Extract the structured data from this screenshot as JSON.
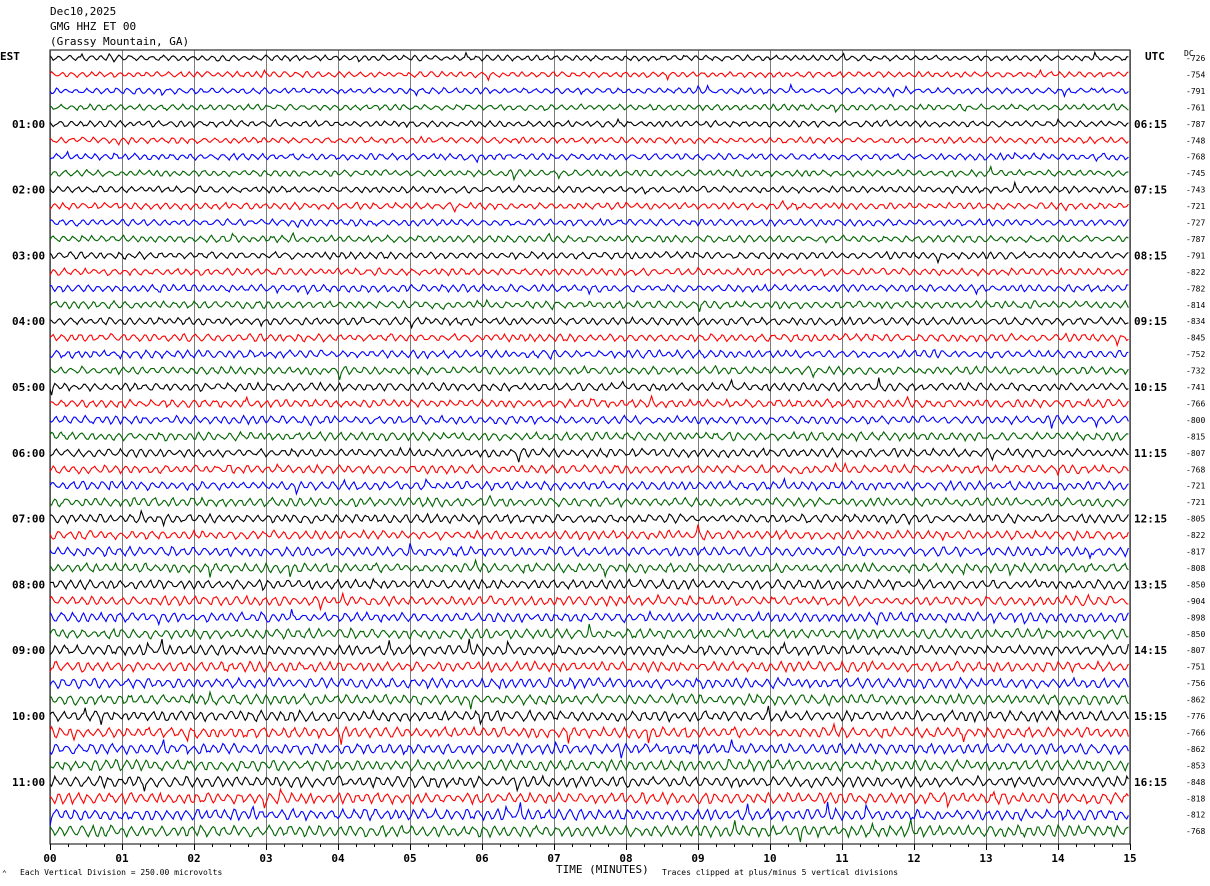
{
  "header": {
    "date": "Dec10,2025",
    "station": "GMG HHZ ET 00",
    "location": "(Grassy Mountain, GA)"
  },
  "left_zone_label": "EST",
  "right_zone_label": "UTC",
  "dc_label": "DC",
  "footer": {
    "scale_note": "Each Vertical Division =  250.00 microvolts",
    "xlabel": "TIME (MINUTES)",
    "clip_note": "Traces clipped at plus/minus 5 vertical divisions"
  },
  "colors": {
    "trace_cycle": [
      "#000000",
      "#ff0000",
      "#0000ff",
      "#006400"
    ],
    "grid": "#000000"
  },
  "chart_data": {
    "type": "line",
    "title": "",
    "xlabel": "TIME (MINUTES)",
    "x_ticks": [
      "00",
      "01",
      "02",
      "03",
      "04",
      "05",
      "06",
      "07",
      "08",
      "09",
      "10",
      "11",
      "12",
      "13",
      "14",
      "15"
    ],
    "xlim": [
      0,
      15
    ],
    "trace_count": 48,
    "est_hour_labels": [
      "01:00",
      "02:00",
      "03:00",
      "04:00",
      "05:00",
      "06:00",
      "07:00",
      "08:00",
      "09:00",
      "10:00",
      "11:00"
    ],
    "utc_hour_labels": [
      "06:15",
      "07:15",
      "08:15",
      "09:15",
      "10:15",
      "11:15",
      "12:15",
      "13:15",
      "14:15",
      "15:15",
      "16:15"
    ],
    "dc_offsets": [
      "-726",
      "-754",
      "-791",
      "-761",
      "-787",
      "-748",
      "-768",
      "-745",
      "-743",
      "-721",
      "-727",
      "-787",
      "-791",
      "-822",
      "-782",
      "-814",
      "-834",
      "-845",
      "-752",
      "-732",
      "-741",
      "-766",
      "-800",
      "-815",
      "-807",
      "-768",
      "-721",
      "-721",
      "-805",
      "-822",
      "-817",
      "-808",
      "-850",
      "-904",
      "-898",
      "-850",
      "-807",
      "-751",
      "-756",
      "-862",
      "-776",
      "-766",
      "-862",
      "-853",
      "-848",
      "-818",
      "-812",
      "-768"
    ],
    "grid": true
  }
}
